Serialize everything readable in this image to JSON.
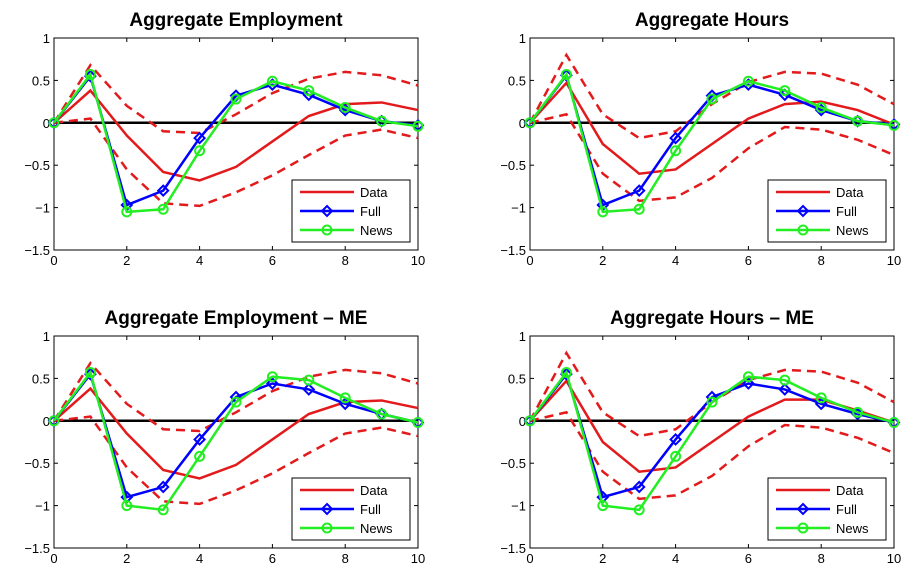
{
  "figure": {
    "colors": {
      "Data": "#e31a1c",
      "Full": "#0000ff",
      "News": "#22ee22",
      "zero": "#000000"
    }
  },
  "chart_data": [
    {
      "type": "line",
      "title": "Aggregate Employment",
      "xlabel": "",
      "ylabel": "",
      "xlim": [
        0,
        10
      ],
      "ylim": [
        -1.5,
        1
      ],
      "xticks": [
        0,
        2,
        4,
        6,
        8,
        10
      ],
      "yticks": [
        -1.5,
        -1,
        -0.5,
        0,
        0.5,
        1
      ],
      "legend": "bottom-right",
      "x": [
        0,
        1,
        2,
        3,
        4,
        5,
        6,
        7,
        8,
        9,
        10
      ],
      "series": [
        {
          "name": "Data",
          "style": "solid",
          "values": [
            0,
            0.38,
            -0.15,
            -0.58,
            -0.68,
            -0.52,
            -0.22,
            0.08,
            0.22,
            0.24,
            0.15
          ]
        },
        {
          "name": "Full",
          "marker": "diamond",
          "values": [
            0,
            0.55,
            -0.97,
            -0.8,
            -0.18,
            0.32,
            0.45,
            0.33,
            0.15,
            0.02,
            -0.03
          ]
        },
        {
          "name": "News",
          "marker": "circle",
          "values": [
            0,
            0.57,
            -1.05,
            -1.02,
            -0.33,
            0.28,
            0.49,
            0.38,
            0.18,
            0.02,
            -0.04
          ]
        }
      ],
      "bands": {
        "upper": [
          0,
          0.68,
          0.2,
          -0.1,
          -0.12,
          0.1,
          0.35,
          0.52,
          0.6,
          0.56,
          0.44
        ],
        "lower": [
          0,
          0.05,
          -0.55,
          -0.95,
          -0.98,
          -0.82,
          -0.62,
          -0.38,
          -0.15,
          -0.08,
          -0.18
        ]
      }
    },
    {
      "type": "line",
      "title": "Aggregate Hours",
      "xlabel": "",
      "ylabel": "",
      "xlim": [
        0,
        10
      ],
      "ylim": [
        -1.5,
        1
      ],
      "xticks": [
        0,
        2,
        4,
        6,
        8,
        10
      ],
      "yticks": [
        -1.5,
        -1,
        -0.5,
        0,
        0.5,
        1
      ],
      "legend": "bottom-right",
      "x": [
        0,
        1,
        2,
        3,
        4,
        5,
        6,
        7,
        8,
        9,
        10
      ],
      "series": [
        {
          "name": "Data",
          "style": "solid",
          "values": [
            0,
            0.47,
            -0.25,
            -0.6,
            -0.55,
            -0.25,
            0.05,
            0.22,
            0.25,
            0.15,
            -0.02
          ]
        },
        {
          "name": "Full",
          "marker": "diamond",
          "values": [
            0,
            0.56,
            -0.97,
            -0.8,
            -0.18,
            0.32,
            0.45,
            0.33,
            0.15,
            0.02,
            -0.02
          ]
        },
        {
          "name": "News",
          "marker": "circle",
          "values": [
            0,
            0.57,
            -1.05,
            -1.02,
            -0.33,
            0.28,
            0.49,
            0.38,
            0.18,
            0.02,
            -0.03
          ]
        }
      ],
      "bands": {
        "upper": [
          0,
          0.8,
          0.1,
          -0.18,
          -0.1,
          0.22,
          0.48,
          0.6,
          0.58,
          0.45,
          0.22
        ],
        "lower": [
          0,
          0.1,
          -0.6,
          -0.92,
          -0.88,
          -0.65,
          -0.3,
          -0.05,
          -0.08,
          -0.2,
          -0.38
        ]
      }
    },
    {
      "type": "line",
      "title": "Aggregate Employment – ME",
      "xlabel": "",
      "ylabel": "",
      "xlim": [
        0,
        10
      ],
      "ylim": [
        -1.5,
        1
      ],
      "xticks": [
        0,
        2,
        4,
        6,
        8,
        10
      ],
      "yticks": [
        -1.5,
        -1,
        -0.5,
        0,
        0.5,
        1
      ],
      "legend": "bottom-right",
      "x": [
        0,
        1,
        2,
        3,
        4,
        5,
        6,
        7,
        8,
        9,
        10
      ],
      "series": [
        {
          "name": "Data",
          "style": "solid",
          "values": [
            0,
            0.38,
            -0.15,
            -0.58,
            -0.68,
            -0.52,
            -0.22,
            0.08,
            0.22,
            0.24,
            0.15
          ]
        },
        {
          "name": "Full",
          "marker": "diamond",
          "values": [
            0,
            0.55,
            -0.9,
            -0.78,
            -0.22,
            0.28,
            0.44,
            0.37,
            0.2,
            0.08,
            -0.02
          ]
        },
        {
          "name": "News",
          "marker": "circle",
          "values": [
            0,
            0.57,
            -1.0,
            -1.05,
            -0.42,
            0.22,
            0.52,
            0.48,
            0.27,
            0.08,
            -0.02
          ]
        }
      ],
      "bands": {
        "upper": [
          0,
          0.68,
          0.2,
          -0.1,
          -0.12,
          0.1,
          0.35,
          0.52,
          0.6,
          0.56,
          0.44
        ],
        "lower": [
          0,
          0.05,
          -0.55,
          -0.95,
          -0.98,
          -0.82,
          -0.62,
          -0.38,
          -0.15,
          -0.08,
          -0.18
        ]
      }
    },
    {
      "type": "line",
      "title": "Aggregate Hours – ME",
      "xlabel": "",
      "ylabel": "",
      "xlim": [
        0,
        10
      ],
      "ylim": [
        -1.5,
        1
      ],
      "xticks": [
        0,
        2,
        4,
        6,
        8,
        10
      ],
      "yticks": [
        -1.5,
        -1,
        -0.5,
        0,
        0.5,
        1
      ],
      "legend": "bottom-right",
      "x": [
        0,
        1,
        2,
        3,
        4,
        5,
        6,
        7,
        8,
        9,
        10
      ],
      "series": [
        {
          "name": "Data",
          "style": "solid",
          "values": [
            0,
            0.47,
            -0.25,
            -0.6,
            -0.55,
            -0.25,
            0.05,
            0.25,
            0.25,
            0.12,
            -0.02
          ]
        },
        {
          "name": "Full",
          "marker": "diamond",
          "values": [
            0,
            0.55,
            -0.9,
            -0.78,
            -0.22,
            0.28,
            0.44,
            0.37,
            0.2,
            0.08,
            -0.02
          ]
        },
        {
          "name": "News",
          "marker": "circle",
          "values": [
            0,
            0.57,
            -1.0,
            -1.05,
            -0.42,
            0.22,
            0.52,
            0.48,
            0.27,
            0.1,
            -0.02
          ]
        }
      ],
      "bands": {
        "upper": [
          0,
          0.8,
          0.1,
          -0.18,
          -0.1,
          0.22,
          0.48,
          0.6,
          0.58,
          0.45,
          0.22
        ],
        "lower": [
          0,
          0.1,
          -0.6,
          -0.92,
          -0.88,
          -0.65,
          -0.3,
          -0.05,
          -0.08,
          -0.2,
          -0.38
        ]
      }
    }
  ]
}
